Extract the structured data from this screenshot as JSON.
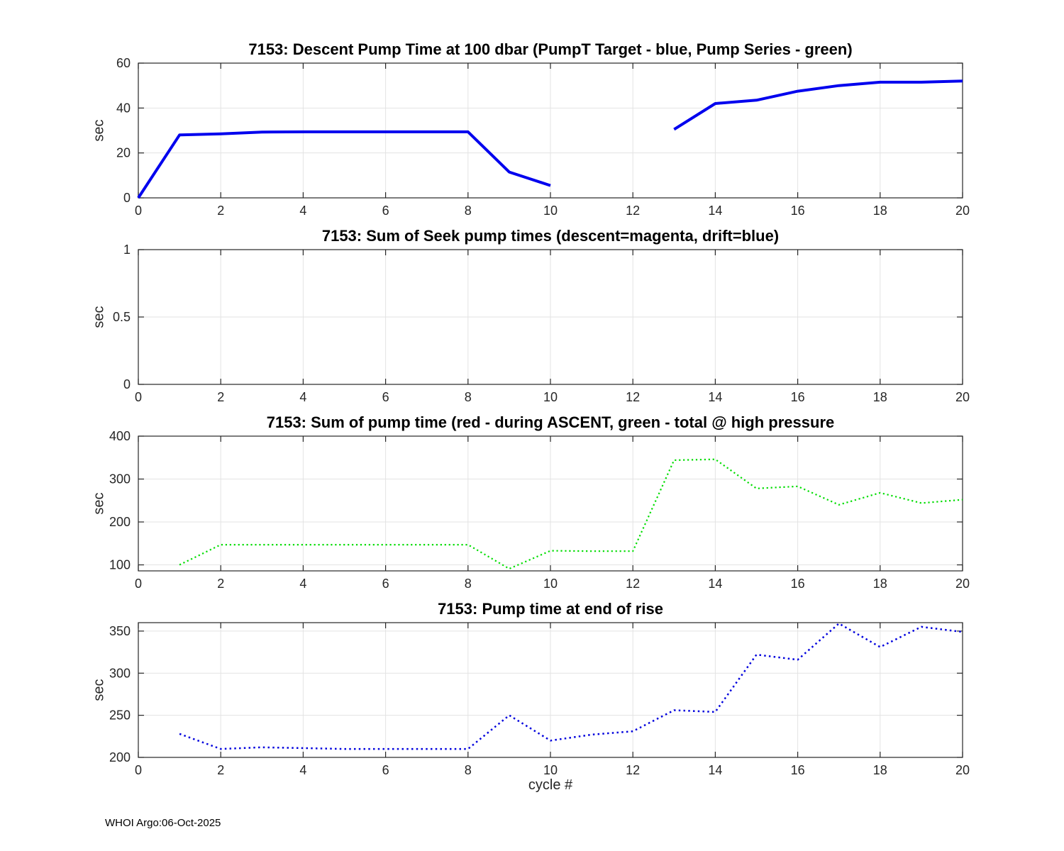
{
  "figure": {
    "footer_text": "WHOI Argo:06-Oct-2025",
    "background_color": "#ffffff",
    "axis_color": "#262626",
    "grid_color": "#e3e3e3",
    "tick_label_color": "#262626",
    "title_color": "#000000"
  },
  "chart_data": [
    {
      "type": "line",
      "title": "7153: Descent Pump Time at 100 dbar (PumpT Target - blue, Pump Series - green)",
      "ylabel": "sec",
      "xlabel": "",
      "xlim": [
        0,
        20
      ],
      "ylim": [
        0,
        60
      ],
      "xticks": [
        0,
        2,
        4,
        6,
        8,
        10,
        12,
        14,
        16,
        18,
        20
      ],
      "yticks": [
        0,
        20,
        40,
        60
      ],
      "grid": true,
      "legend_position": "none",
      "series": [
        {
          "name": "PumpT Target (blue)",
          "color": "#0000ee",
          "line_style": "solid",
          "line_width": 4,
          "segments": [
            {
              "x": [
                0,
                1,
                2,
                3,
                4,
                5,
                6,
                7,
                8,
                9,
                10
              ],
              "y": [
                0,
                28,
                28.5,
                29.3,
                29.4,
                29.4,
                29.4,
                29.4,
                29.4,
                11.5,
                5.5
              ]
            },
            {
              "x": [
                13,
                14,
                15,
                16,
                17,
                18,
                19,
                20
              ],
              "y": [
                30.5,
                42,
                43.5,
                47.5,
                50,
                51.5,
                51.5,
                52
              ]
            }
          ]
        }
      ]
    },
    {
      "type": "line",
      "title": "7153: Sum of Seek pump times (descent=magenta, drift=blue)",
      "ylabel": "sec",
      "xlabel": "",
      "xlim": [
        0,
        20
      ],
      "ylim": [
        0,
        1
      ],
      "xticks": [
        0,
        2,
        4,
        6,
        8,
        10,
        12,
        14,
        16,
        18,
        20
      ],
      "yticks": [
        0,
        0.5,
        1
      ],
      "grid": true,
      "legend_position": "none",
      "series": []
    },
    {
      "type": "line",
      "title": "7153: Sum of pump time (red - during ASCENT, green - total @ high pressure",
      "ylabel": "sec",
      "xlabel": "",
      "xlim": [
        0,
        20
      ],
      "ylim": [
        86,
        400
      ],
      "xticks": [
        0,
        2,
        4,
        6,
        8,
        10,
        12,
        14,
        16,
        18,
        20
      ],
      "yticks": [
        100,
        200,
        300,
        400
      ],
      "grid": true,
      "legend_position": "none",
      "series": [
        {
          "name": "total @ high pressure (green)",
          "color": "#00dd00",
          "line_style": "dotted",
          "line_width": 2.2,
          "segments": [
            {
              "x": [
                1,
                2,
                3,
                4,
                5,
                6,
                7,
                8,
                9,
                10,
                11,
                12,
                13,
                14,
                15,
                16,
                17,
                18,
                19,
                20
              ],
              "y": [
                100,
                147,
                147,
                147,
                147,
                147,
                147,
                147,
                91,
                133,
                132,
                132,
                344,
                346,
                278,
                283,
                240,
                268,
                244,
                252
              ]
            }
          ]
        }
      ]
    },
    {
      "type": "line",
      "title": "7153: Pump time at end of rise",
      "ylabel": "sec",
      "xlabel": "cycle #",
      "xlim": [
        0,
        20
      ],
      "ylim": [
        200,
        360
      ],
      "xticks": [
        0,
        2,
        4,
        6,
        8,
        10,
        12,
        14,
        16,
        18,
        20
      ],
      "yticks": [
        200,
        250,
        300,
        350
      ],
      "grid": true,
      "legend_position": "none",
      "series": [
        {
          "name": "pump time at end of rise (blue)",
          "color": "#0000dd",
          "line_style": "dotted",
          "line_width": 2.5,
          "segments": [
            {
              "x": [
                1,
                2,
                3,
                4,
                5,
                6,
                7,
                8,
                9,
                10,
                11,
                12,
                13,
                14,
                15,
                16,
                17,
                18,
                19,
                20
              ],
              "y": [
                228,
                210,
                212,
                211,
                210,
                210,
                210,
                210,
                250,
                220,
                227,
                231,
                256,
                254,
                322,
                316,
                359,
                331,
                355,
                349
              ]
            }
          ]
        }
      ]
    }
  ]
}
